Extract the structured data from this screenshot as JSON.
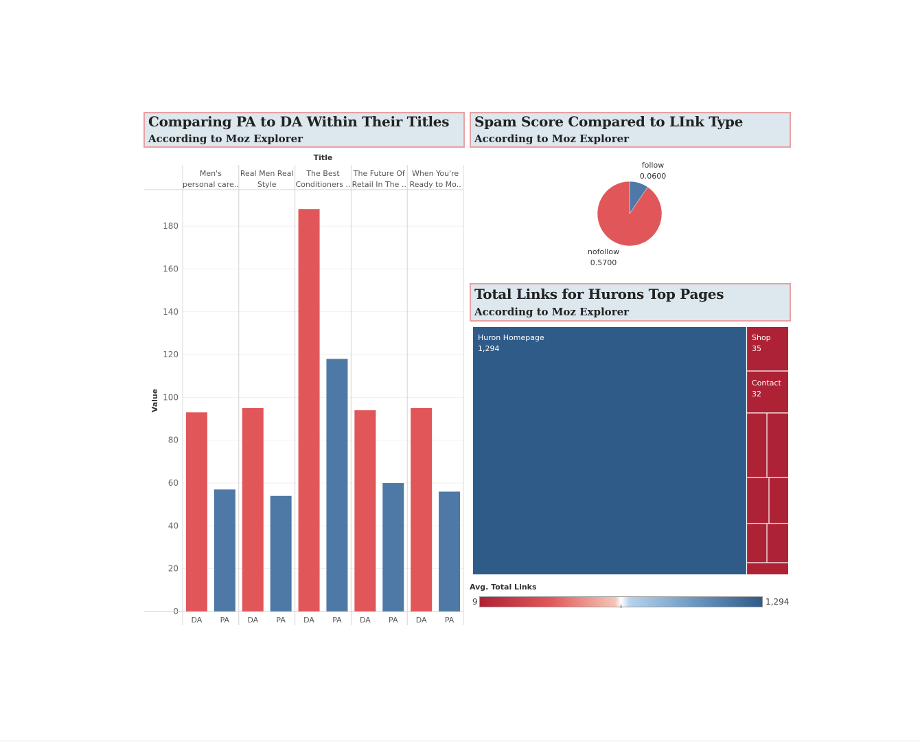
{
  "panels": {
    "bar": {
      "title": "Comparing PA to DA Within Their Titles",
      "subtitle": "According to Moz Explorer"
    },
    "pie": {
      "title": "Spam Score Compared to LInk Type",
      "subtitle": "According to Moz Explorer"
    },
    "treemap": {
      "title": "Total Links for Hurons Top Pages",
      "subtitle": "According to Moz Explorer"
    }
  },
  "colors": {
    "da": "#e15759",
    "pa": "#4e79a7",
    "tree_blue": "#2f5b88",
    "tree_red": "#ae2235"
  },
  "chart_data": [
    {
      "type": "bar",
      "column_header": "Title",
      "ylabel": "Value",
      "ylim": [
        0,
        190
      ],
      "yticks": [
        0,
        20,
        40,
        60,
        80,
        100,
        120,
        140,
        160,
        180
      ],
      "groups": [
        {
          "label_lines": [
            "Men's",
            "personal care.."
          ],
          "bars": [
            {
              "label": "DA",
              "value": 93
            },
            {
              "label": "PA",
              "value": 57
            }
          ]
        },
        {
          "label_lines": [
            "Real Men Real",
            "Style"
          ],
          "bars": [
            {
              "label": "DA",
              "value": 95
            },
            {
              "label": "PA",
              "value": 54
            }
          ]
        },
        {
          "label_lines": [
            "The Best",
            "Conditioners .."
          ],
          "bars": [
            {
              "label": "DA",
              "value": 188
            },
            {
              "label": "PA",
              "value": 118
            }
          ]
        },
        {
          "label_lines": [
            "The Future Of",
            "Retail In The .."
          ],
          "bars": [
            {
              "label": "DA",
              "value": 94
            },
            {
              "label": "PA",
              "value": 60
            }
          ]
        },
        {
          "label_lines": [
            "When You're",
            "Ready to Mo.."
          ],
          "bars": [
            {
              "label": "DA",
              "value": 95
            },
            {
              "label": "PA",
              "value": 56
            }
          ]
        }
      ]
    },
    {
      "type": "pie",
      "slices": [
        {
          "name": "follow",
          "value": 0.06,
          "label": "0.0600"
        },
        {
          "name": "nofollow",
          "value": 0.57,
          "label": "0.5700"
        }
      ]
    },
    {
      "type": "treemap",
      "items": [
        {
          "name": "Huron Homepage",
          "value": 1294,
          "label": "1,294"
        },
        {
          "name": "Shop",
          "value": 35,
          "label": "35"
        },
        {
          "name": "Contact",
          "value": 32,
          "label": "32"
        }
      ],
      "legend": {
        "title": "Avg. Total Links",
        "min_label": "9",
        "max_label": "1,294"
      }
    }
  ]
}
